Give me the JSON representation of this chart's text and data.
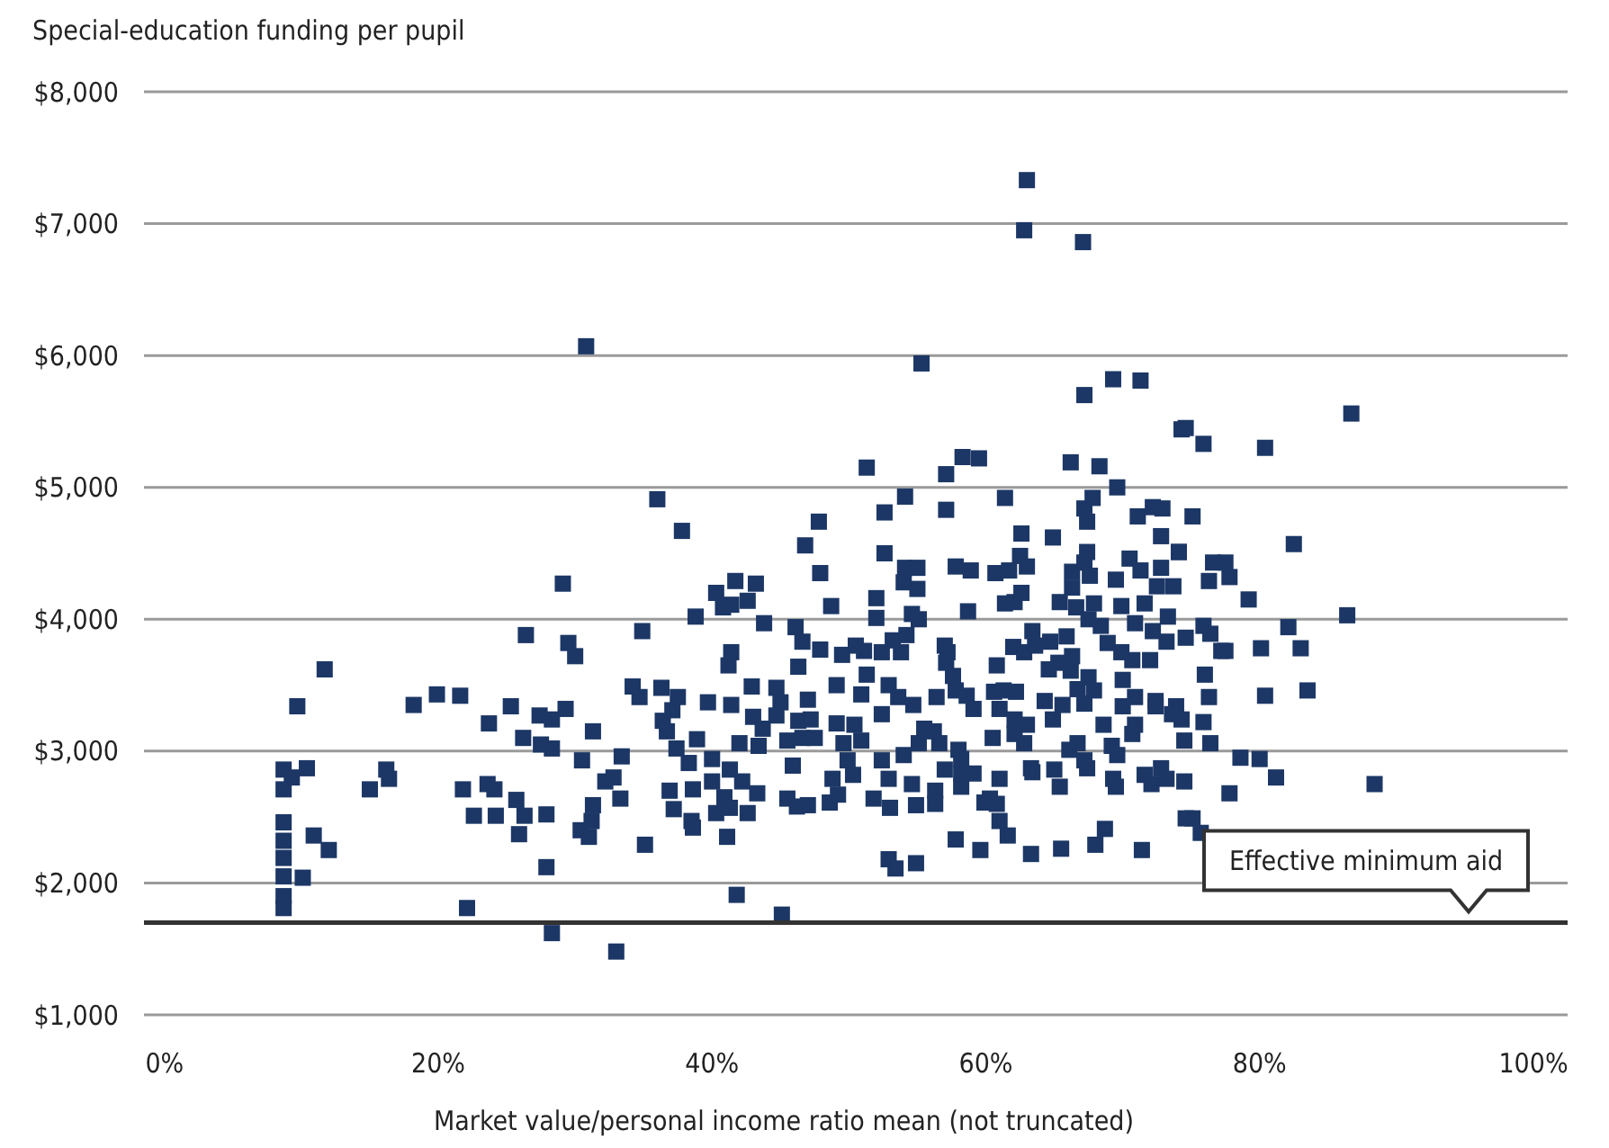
{
  "chart_data": {
    "type": "scatter",
    "xlabel": "Market value/personal income ratio mean (not truncated)",
    "ylabel": "Special-education funding per pupil",
    "marker": "square",
    "grid": "y",
    "xlim": [
      -1.5,
      102.5
    ],
    "ylim": [
      1000,
      8000
    ],
    "xticks": [
      {
        "value": 0,
        "label": "0%"
      },
      {
        "value": 20,
        "label": "20%"
      },
      {
        "value": 40,
        "label": "40%"
      },
      {
        "value": 60,
        "label": "60%"
      },
      {
        "value": 80,
        "label": "80%"
      },
      {
        "value": 100,
        "label": "100%"
      }
    ],
    "yticks": [
      {
        "value": 1000,
        "label": "$1,000"
      },
      {
        "value": 2000,
        "label": "$2,000"
      },
      {
        "value": 3000,
        "label": "$3,000"
      },
      {
        "value": 4000,
        "label": "$4,000"
      },
      {
        "value": 5000,
        "label": "$5,000"
      },
      {
        "value": 6000,
        "label": "$6,000"
      },
      {
        "value": 7000,
        "label": "$7,000"
      },
      {
        "value": 8000,
        "label": "$8,000"
      }
    ],
    "ref_lines": [
      {
        "axis": "y",
        "value": 1700,
        "label": "Effective minimum aid",
        "color": "#333333",
        "line_style": "solid"
      }
    ],
    "series": [
      {
        "color": "#1c3766",
        "x": [
          30.8,
          36,
          37.8,
          29.1,
          41.7,
          43.2,
          40.3,
          40.8,
          41.4,
          42.6,
          38.8,
          43.8,
          26.4,
          34.9,
          29.5,
          30,
          11.7,
          41.4,
          41.2,
          9.7,
          18.2,
          19.9,
          21.6,
          25.3,
          23.7,
          27.4,
          28.3,
          29.3,
          26.2,
          27.5,
          28.3,
          31.3,
          34.2,
          34.7,
          36.3,
          37.5,
          37.1,
          36.4,
          36.7,
          37.4,
          39.7,
          41.4,
          42.9,
          44.7,
          45,
          44.7,
          43,
          43.7,
          43.4,
          42,
          45.5,
          30.5,
          33.4,
          38.9,
          38.3,
          40,
          8.7,
          10.4,
          9.3,
          8.7,
          16.2,
          16.4,
          15,
          21.8,
          23.6,
          24.1,
          25.7,
          22.6,
          24.2,
          26.3,
          27.9,
          25.9,
          27.9,
          22.1,
          28.3,
          33,
          10.1,
          10.9,
          12,
          8.7,
          8.7,
          8.7,
          8.7,
          8.7,
          8.7,
          31.3,
          31.2,
          30.4,
          31,
          32.2,
          32.8,
          33.3,
          35.1,
          36.9,
          37.2,
          38.6,
          38.5,
          38.6,
          40,
          41.3,
          42.2,
          40.9,
          40.3,
          41.3,
          41.1,
          43.3,
          42.6,
          45.5,
          41.8,
          45.1,
          63,
          62.8,
          67.1,
          55.3,
          67.2,
          69.3,
          71.3,
          74.3,
          51.3,
          57.1,
          58.3,
          59.5,
          66.2,
          68.3,
          69.6,
          54.1,
          52.6,
          47.8,
          46.8,
          57.1,
          61.4,
          67.2,
          67.4,
          67.8,
          71.1,
          72.2,
          72.9,
          72.8,
          74.1,
          52.6,
          47.9,
          54.1,
          55,
          54,
          55,
          57.8,
          58.9,
          60.7,
          61.7,
          62.5,
          63,
          62.6,
          64.9,
          67.4,
          67.2,
          66.3,
          67.6,
          66.3,
          69.5,
          70.5,
          71.3,
          72.8,
          72.5,
          73.7,
          48.7,
          52,
          52,
          54.6,
          55.1,
          58.7,
          61.4,
          62.1,
          62.6,
          65.4,
          66.6,
          67.9,
          69.9,
          71.6,
          73.3,
          67.5,
          68.4,
          70.9,
          72.2,
          46.6,
          47.9,
          49.5,
          50.5,
          51.1,
          52.4,
          53.2,
          53.8,
          54.2,
          57,
          57.2,
          57.1,
          60.8,
          62,
          63.4,
          62.8,
          63.6,
          64.7,
          65.9,
          65.3,
          66.3,
          66.2,
          64.6,
          67.5,
          67.9,
          66.7,
          67.2,
          68.9,
          69.9,
          70.7,
          72,
          73.2,
          74.6,
          70,
          70.9,
          70,
          72.4,
          73.9,
          74.3,
          46.3,
          46.1,
          49.1,
          51.3,
          50.9,
          52.9,
          53.6,
          54.7,
          52.4,
          56.4,
          57.6,
          57.8,
          58.6,
          59.1,
          60.6,
          61.3,
          62.2,
          61,
          62.1,
          63,
          64.3,
          65.6,
          64.9,
          47,
          46.3,
          47.2,
          49.1,
          50.4,
          47.5,
          49.6,
          50.9,
          49.9,
          48.8,
          50.3,
          46.6,
          45.9,
          47,
          46.2,
          48.6,
          49.2,
          52.4,
          52.9,
          54,
          55.5,
          56.2,
          55.1,
          51.8,
          53,
          54.6,
          54.9,
          56.3,
          56.3,
          57,
          58.2,
          59.1,
          58.2,
          56.6,
          58,
          58.2,
          59.9,
          60.8,
          61,
          60.3,
          61,
          60.5,
          62.1,
          62.8,
          63.3,
          63.4,
          65,
          65.4,
          66.1,
          66.7,
          67.2,
          67.4,
          68.6,
          69.2,
          69.6,
          69.3,
          69.5,
          71.6,
          72.1,
          72.8,
          73.2,
          74.5,
          70.7,
          70.9,
          72.4,
          73.6,
          74.5,
          57.8,
          59.6,
          61.6,
          63.3,
          65.5,
          68,
          68.7,
          71.4,
          52.9,
          53.4,
          54.9,
          74.6,
          86.7,
          74.6,
          75.9,
          80.4,
          75.1,
          82.5,
          74.1,
          76.6,
          77.5,
          77.8,
          76.3,
          79.2,
          86.4,
          75.9,
          76.4,
          77.2,
          77.5,
          80.1,
          82.1,
          83,
          76,
          76.3,
          80.4,
          83.5,
          75.9,
          76.4,
          78.6,
          80,
          81.2,
          88.4,
          77.8,
          75.1,
          75.7
        ],
        "values": [
          6070,
          4910,
          4670,
          4270,
          4290,
          4270,
          4200,
          4090,
          4110,
          4140,
          4020,
          3970,
          3880,
          3910,
          3820,
          3720,
          3620,
          3750,
          3650,
          3340,
          3350,
          3430,
          3420,
          3340,
          3210,
          3270,
          3240,
          3320,
          3100,
          3050,
          3020,
          3150,
          3490,
          3410,
          3480,
          3410,
          3310,
          3230,
          3150,
          3020,
          3370,
          3350,
          3490,
          3480,
          3370,
          3270,
          3260,
          3170,
          3040,
          3060,
          3080,
          2930,
          2960,
          3090,
          2910,
          2940,
          2860,
          2870,
          2800,
          2710,
          2860,
          2790,
          2710,
          2710,
          2750,
          2710,
          2630,
          2510,
          2510,
          2510,
          2520,
          2370,
          2120,
          1810,
          1620,
          1480,
          2040,
          2360,
          2250,
          2460,
          2320,
          2190,
          2050,
          1900,
          1810,
          2590,
          2470,
          2400,
          2350,
          2770,
          2800,
          2640,
          2290,
          2700,
          2560,
          2710,
          2470,
          2420,
          2770,
          2860,
          2770,
          2650,
          2530,
          2570,
          2350,
          2680,
          2530,
          2640,
          1910,
          1760,
          7330,
          6950,
          6860,
          5940,
          5700,
          5820,
          5810,
          5440,
          5150,
          5100,
          5230,
          5220,
          5190,
          5160,
          5000,
          4930,
          4810,
          4740,
          4560,
          4830,
          4920,
          4840,
          4740,
          4920,
          4780,
          4850,
          4840,
          4630,
          4510,
          4500,
          4350,
          4390,
          4390,
          4280,
          4230,
          4400,
          4370,
          4350,
          4370,
          4480,
          4400,
          4650,
          4620,
          4510,
          4430,
          4360,
          4330,
          4240,
          4300,
          4460,
          4370,
          4390,
          4250,
          4250,
          4100,
          4160,
          4010,
          4040,
          4000,
          4060,
          4120,
          4130,
          4200,
          4130,
          4090,
          4120,
          4100,
          4120,
          4020,
          4000,
          3950,
          3970,
          3910,
          3830,
          3770,
          3730,
          3800,
          3760,
          3750,
          3840,
          3750,
          3880,
          3800,
          3750,
          3670,
          3650,
          3790,
          3910,
          3750,
          3800,
          3830,
          3870,
          3670,
          3720,
          3610,
          3620,
          3560,
          3460,
          3470,
          3360,
          3820,
          3750,
          3690,
          3690,
          3830,
          3860,
          3540,
          3410,
          3340,
          3340,
          3340,
          3240,
          3640,
          3940,
          3500,
          3580,
          3430,
          3500,
          3410,
          3350,
          3280,
          3410,
          3570,
          3460,
          3420,
          3320,
          3450,
          3460,
          3450,
          3320,
          3240,
          3200,
          3380,
          3350,
          3240,
          3390,
          3230,
          3240,
          3210,
          3200,
          3100,
          3060,
          3080,
          2930,
          2790,
          2820,
          3100,
          2890,
          2590,
          2580,
          2610,
          2670,
          2930,
          2790,
          2970,
          3170,
          3150,
          3060,
          2640,
          2570,
          2750,
          2590,
          2700,
          2600,
          2860,
          2830,
          2830,
          2730,
          3060,
          3010,
          2940,
          2610,
          2600,
          2470,
          2640,
          2790,
          3100,
          3130,
          3060,
          2870,
          2840,
          2860,
          2730,
          3010,
          3060,
          2930,
          2870,
          3200,
          3040,
          2970,
          2790,
          2730,
          2820,
          2750,
          2870,
          2790,
          2770,
          3130,
          3200,
          3380,
          3280,
          3080,
          2330,
          2250,
          2360,
          2220,
          2260,
          2290,
          2410,
          2250,
          2180,
          2110,
          2150,
          2490,
          5560,
          5450,
          5330,
          5300,
          4780,
          4570,
          4510,
          4430,
          4430,
          4320,
          4290,
          4150,
          4030,
          3950,
          3890,
          3760,
          3760,
          3780,
          3940,
          3780,
          3580,
          3410,
          3420,
          3460,
          3220,
          3060,
          2950,
          2940,
          2800,
          2750,
          2680,
          2490,
          2380
        ]
      }
    ]
  }
}
